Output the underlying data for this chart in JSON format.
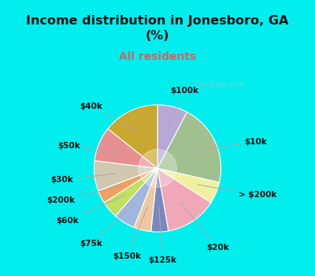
{
  "title": "Income distribution in Jonesboro, GA\n(%)",
  "subtitle": "All residents",
  "title_color": "#111111",
  "subtitle_color": "#cc6666",
  "title_fontsize": 11.5,
  "subtitle_fontsize": 10,
  "bg_cyan": "#00EEEE",
  "bg_chart_edge": "#b8ddd8",
  "bg_chart_center": "#f0f8f0",
  "watermark": "City-Data.com",
  "slices": [
    {
      "label": "$100k",
      "value": 7,
      "color": "#b8a8d8"
    },
    {
      "label": "$10k",
      "value": 19,
      "color": "#a0c090"
    },
    {
      "label": "> $200k",
      "value": 5,
      "color": "#f0f0a0"
    },
    {
      "label": "$20k",
      "value": 12,
      "color": "#f0a8b8"
    },
    {
      "label": "$125k",
      "value": 4,
      "color": "#7888c0"
    },
    {
      "label": "$150k",
      "value": 4,
      "color": "#f0c8a0"
    },
    {
      "label": "$75k",
      "value": 5,
      "color": "#a0b8e0"
    },
    {
      "label": "$60k",
      "value": 4,
      "color": "#c0e060"
    },
    {
      "label": "$200k",
      "value": 3,
      "color": "#f0a060"
    },
    {
      "label": "$30k",
      "value": 7,
      "color": "#d0c8b0"
    },
    {
      "label": "$50k",
      "value": 8,
      "color": "#e89090"
    },
    {
      "label": "$40k",
      "value": 13,
      "color": "#c8a830"
    }
  ],
  "label_fontsize": 7.5,
  "label_color": "#111111",
  "line_color": "#aaaaaa",
  "edge_color": "white",
  "edge_lw": 0.8
}
